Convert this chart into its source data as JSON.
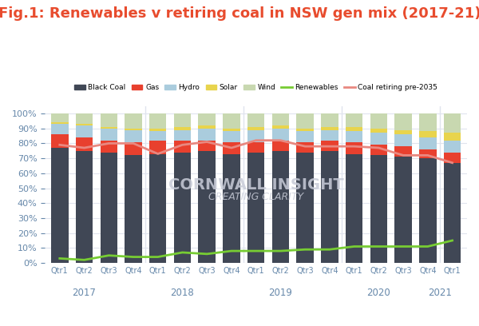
{
  "title": "Fig.1: Renewables v retiring coal in NSW gen mix (2017-21)",
  "title_color": "#e84c2e",
  "title_fontsize": 13,
  "background_color": "#ffffff",
  "quarters": [
    "Qtr1",
    "Qtr2",
    "Qtr3",
    "Qtr4",
    "Qtr1",
    "Qtr2",
    "Qtr3",
    "Qtr4",
    "Qtr1",
    "Qtr2",
    "Qtr3",
    "Qtr4",
    "Qtr1",
    "Qtr2",
    "Qtr3",
    "Qtr4",
    "Qtr1"
  ],
  "years": [
    "2017",
    "2018",
    "2019",
    "2020",
    "2021"
  ],
  "year_positions": [
    1.5,
    5.5,
    9.5,
    13.5,
    16
  ],
  "black_coal": [
    77,
    75,
    74,
    72,
    73,
    74,
    75,
    73,
    74,
    75,
    74,
    75,
    73,
    72,
    71,
    70,
    67
  ],
  "gas": [
    9,
    9,
    8,
    9,
    9,
    8,
    7,
    8,
    7,
    7,
    7,
    7,
    8,
    7,
    7,
    6,
    7
  ],
  "hydro": [
    7,
    8,
    8,
    8,
    6,
    7,
    8,
    7,
    8,
    8,
    7,
    7,
    7,
    8,
    8,
    8,
    8
  ],
  "solar": [
    1,
    1,
    1,
    1,
    2,
    2,
    2,
    2,
    2,
    2,
    2,
    2,
    3,
    3,
    3,
    4,
    5
  ],
  "wind": [
    6,
    7,
    9,
    10,
    10,
    9,
    8,
    10,
    9,
    8,
    10,
    9,
    9,
    10,
    11,
    12,
    13
  ],
  "renewables_line": [
    3,
    2,
    5,
    4,
    4,
    7,
    6,
    8,
    8,
    8,
    9,
    9,
    11,
    11,
    11,
    11,
    15
  ],
  "coal_retiring_line": [
    79,
    77,
    80,
    80,
    73,
    79,
    81,
    77,
    82,
    82,
    78,
    78,
    78,
    77,
    72,
    72,
    67
  ],
  "bar_color_coal": "#404755",
  "bar_color_gas": "#e8402e",
  "bar_color_hydro": "#aaccdd",
  "bar_color_solar": "#e8d44d",
  "bar_color_wind": "#c8d8b0",
  "line_color_renewables": "#77cc33",
  "line_color_coal_retiring": "#e88880",
  "legend_items": [
    "Black Coal",
    "Gas",
    "Hydro",
    "Solar",
    "Wind",
    "Renewables",
    "Coal retiring pre-2035"
  ],
  "watermark_text1": "CORNWALL INSIGHT",
  "watermark_text2": "CREATING CLARITY",
  "watermark_color": "#c8ccd8",
  "grid_color": "#e0e4ee",
  "tick_color": "#6688aa",
  "axis_label_color": "#6688aa"
}
